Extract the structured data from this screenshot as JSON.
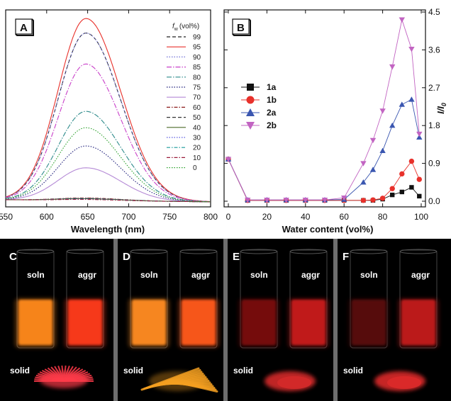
{
  "chart_data": [
    {
      "panel": "A",
      "type": "line",
      "xlabel": "Wavelength (nm)",
      "ylabel": "",
      "xlim": [
        550,
        800
      ],
      "xticks": [
        550,
        600,
        650,
        700,
        750,
        800
      ],
      "ylim": [
        0,
        1
      ],
      "legend_title_f": "f",
      "legend_title_w": "w",
      "legend_title_unit": "(vol%)",
      "legend_placement": "top-right",
      "peak_nm": 648,
      "series": [
        {
          "name": "99",
          "peak": 0.92,
          "color": "#222222",
          "dash": "5,3"
        },
        {
          "name": "95",
          "peak": 1.0,
          "color": "#e8312b",
          "dash": ""
        },
        {
          "name": "90",
          "peak": 0.92,
          "color": "#6f6fd6",
          "dash": "1.5,2"
        },
        {
          "name": "85",
          "peak": 0.75,
          "color": "#c940c9",
          "dash": "7,2,1.5,2"
        },
        {
          "name": "80",
          "peak": 0.49,
          "color": "#2e8b8b",
          "dash": "7,2,1.5,2"
        },
        {
          "name": "75",
          "peak": 0.3,
          "color": "#1c1c7a",
          "dash": "1.5,2"
        },
        {
          "name": "70",
          "peak": 0.18,
          "color": "#b58ad6",
          "dash": ""
        },
        {
          "name": "60",
          "peak": 0.014,
          "color": "#8b1a1a",
          "dash": "5,2,1.5,2"
        },
        {
          "name": "50",
          "peak": 0.012,
          "color": "#333333",
          "dash": "5,3"
        },
        {
          "name": "40",
          "peak": 0.01,
          "color": "#4d6b2a",
          "dash": ""
        },
        {
          "name": "30",
          "peak": 0.01,
          "color": "#5b5be0",
          "dash": "1.5,2"
        },
        {
          "name": "20",
          "peak": 0.008,
          "color": "#1a9a9a",
          "dash": "5,2,1.5,2"
        },
        {
          "name": "10",
          "peak": 0.006,
          "color": "#9a1a3a",
          "dash": "5,2,1.5,2"
        },
        {
          "name": "0",
          "peak": 0.4,
          "color": "#2aa02a",
          "dash": "1.5,2"
        }
      ]
    },
    {
      "panel": "B",
      "type": "line",
      "xlabel": "Water content (vol%)",
      "ylabel": "I/I0",
      "ylabel_main": "I/I",
      "ylabel_sub": "0",
      "xlim": [
        0,
        100
      ],
      "xticks": [
        0,
        20,
        40,
        60,
        80,
        100
      ],
      "ylim": [
        0,
        4.5
      ],
      "yticks": [
        "0.0",
        "0.9",
        "1.8",
        "2.7",
        "3.6",
        "4.5"
      ],
      "legend_placement": "left",
      "series": [
        {
          "name": "1a",
          "marker": "square",
          "color": "#111111",
          "x": [
            0,
            10,
            20,
            30,
            40,
            50,
            60,
            70,
            75,
            80,
            85,
            90,
            95,
            99
          ],
          "y": [
            1.0,
            0.02,
            0.02,
            0.02,
            0.02,
            0.02,
            0.02,
            0.02,
            0.02,
            0.05,
            0.15,
            0.22,
            0.33,
            0.12
          ]
        },
        {
          "name": "1b",
          "marker": "circle",
          "color": "#e8312b",
          "x": [
            0,
            10,
            20,
            30,
            40,
            50,
            60,
            70,
            75,
            80,
            85,
            90,
            95,
            99
          ],
          "y": [
            1.0,
            0.02,
            0.02,
            0.02,
            0.02,
            0.02,
            0.02,
            0.02,
            0.03,
            0.07,
            0.3,
            0.65,
            0.95,
            0.52
          ]
        },
        {
          "name": "2a",
          "marker": "triangle-up",
          "color": "#3a56b0",
          "x": [
            0,
            10,
            20,
            30,
            40,
            50,
            60,
            70,
            75,
            80,
            85,
            90,
            95,
            99
          ],
          "y": [
            1.0,
            0.03,
            0.03,
            0.03,
            0.03,
            0.03,
            0.04,
            0.45,
            0.75,
            1.2,
            1.8,
            2.3,
            2.42,
            1.52
          ]
        },
        {
          "name": "2b",
          "marker": "triangle-down",
          "color": "#c264c2",
          "x": [
            0,
            10,
            20,
            30,
            40,
            50,
            60,
            70,
            75,
            80,
            85,
            90,
            95,
            99
          ],
          "y": [
            1.0,
            0.03,
            0.03,
            0.03,
            0.03,
            0.03,
            0.08,
            0.9,
            1.45,
            2.15,
            3.2,
            4.32,
            3.62,
            1.6
          ]
        }
      ]
    }
  ],
  "photos": {
    "panels": [
      "C",
      "D",
      "E",
      "F"
    ],
    "soln_label": "soln",
    "aggr_label": "aggr",
    "solid_label": "solid",
    "colors": {
      "C": {
        "soln": "#ff8a1c",
        "aggr": "#ff3a1a",
        "solid": "#ff3b4a"
      },
      "D": {
        "soln": "#ff8c22",
        "aggr": "#ff5a1e",
        "solid": "#f5a021"
      },
      "E": {
        "soln": "#7a0c0c",
        "aggr": "#c81e1e",
        "solid": "#d42a2a"
      },
      "F": {
        "soln": "#5a0808",
        "aggr": "#c21c1c",
        "solid": "#dc2a2a"
      }
    }
  }
}
